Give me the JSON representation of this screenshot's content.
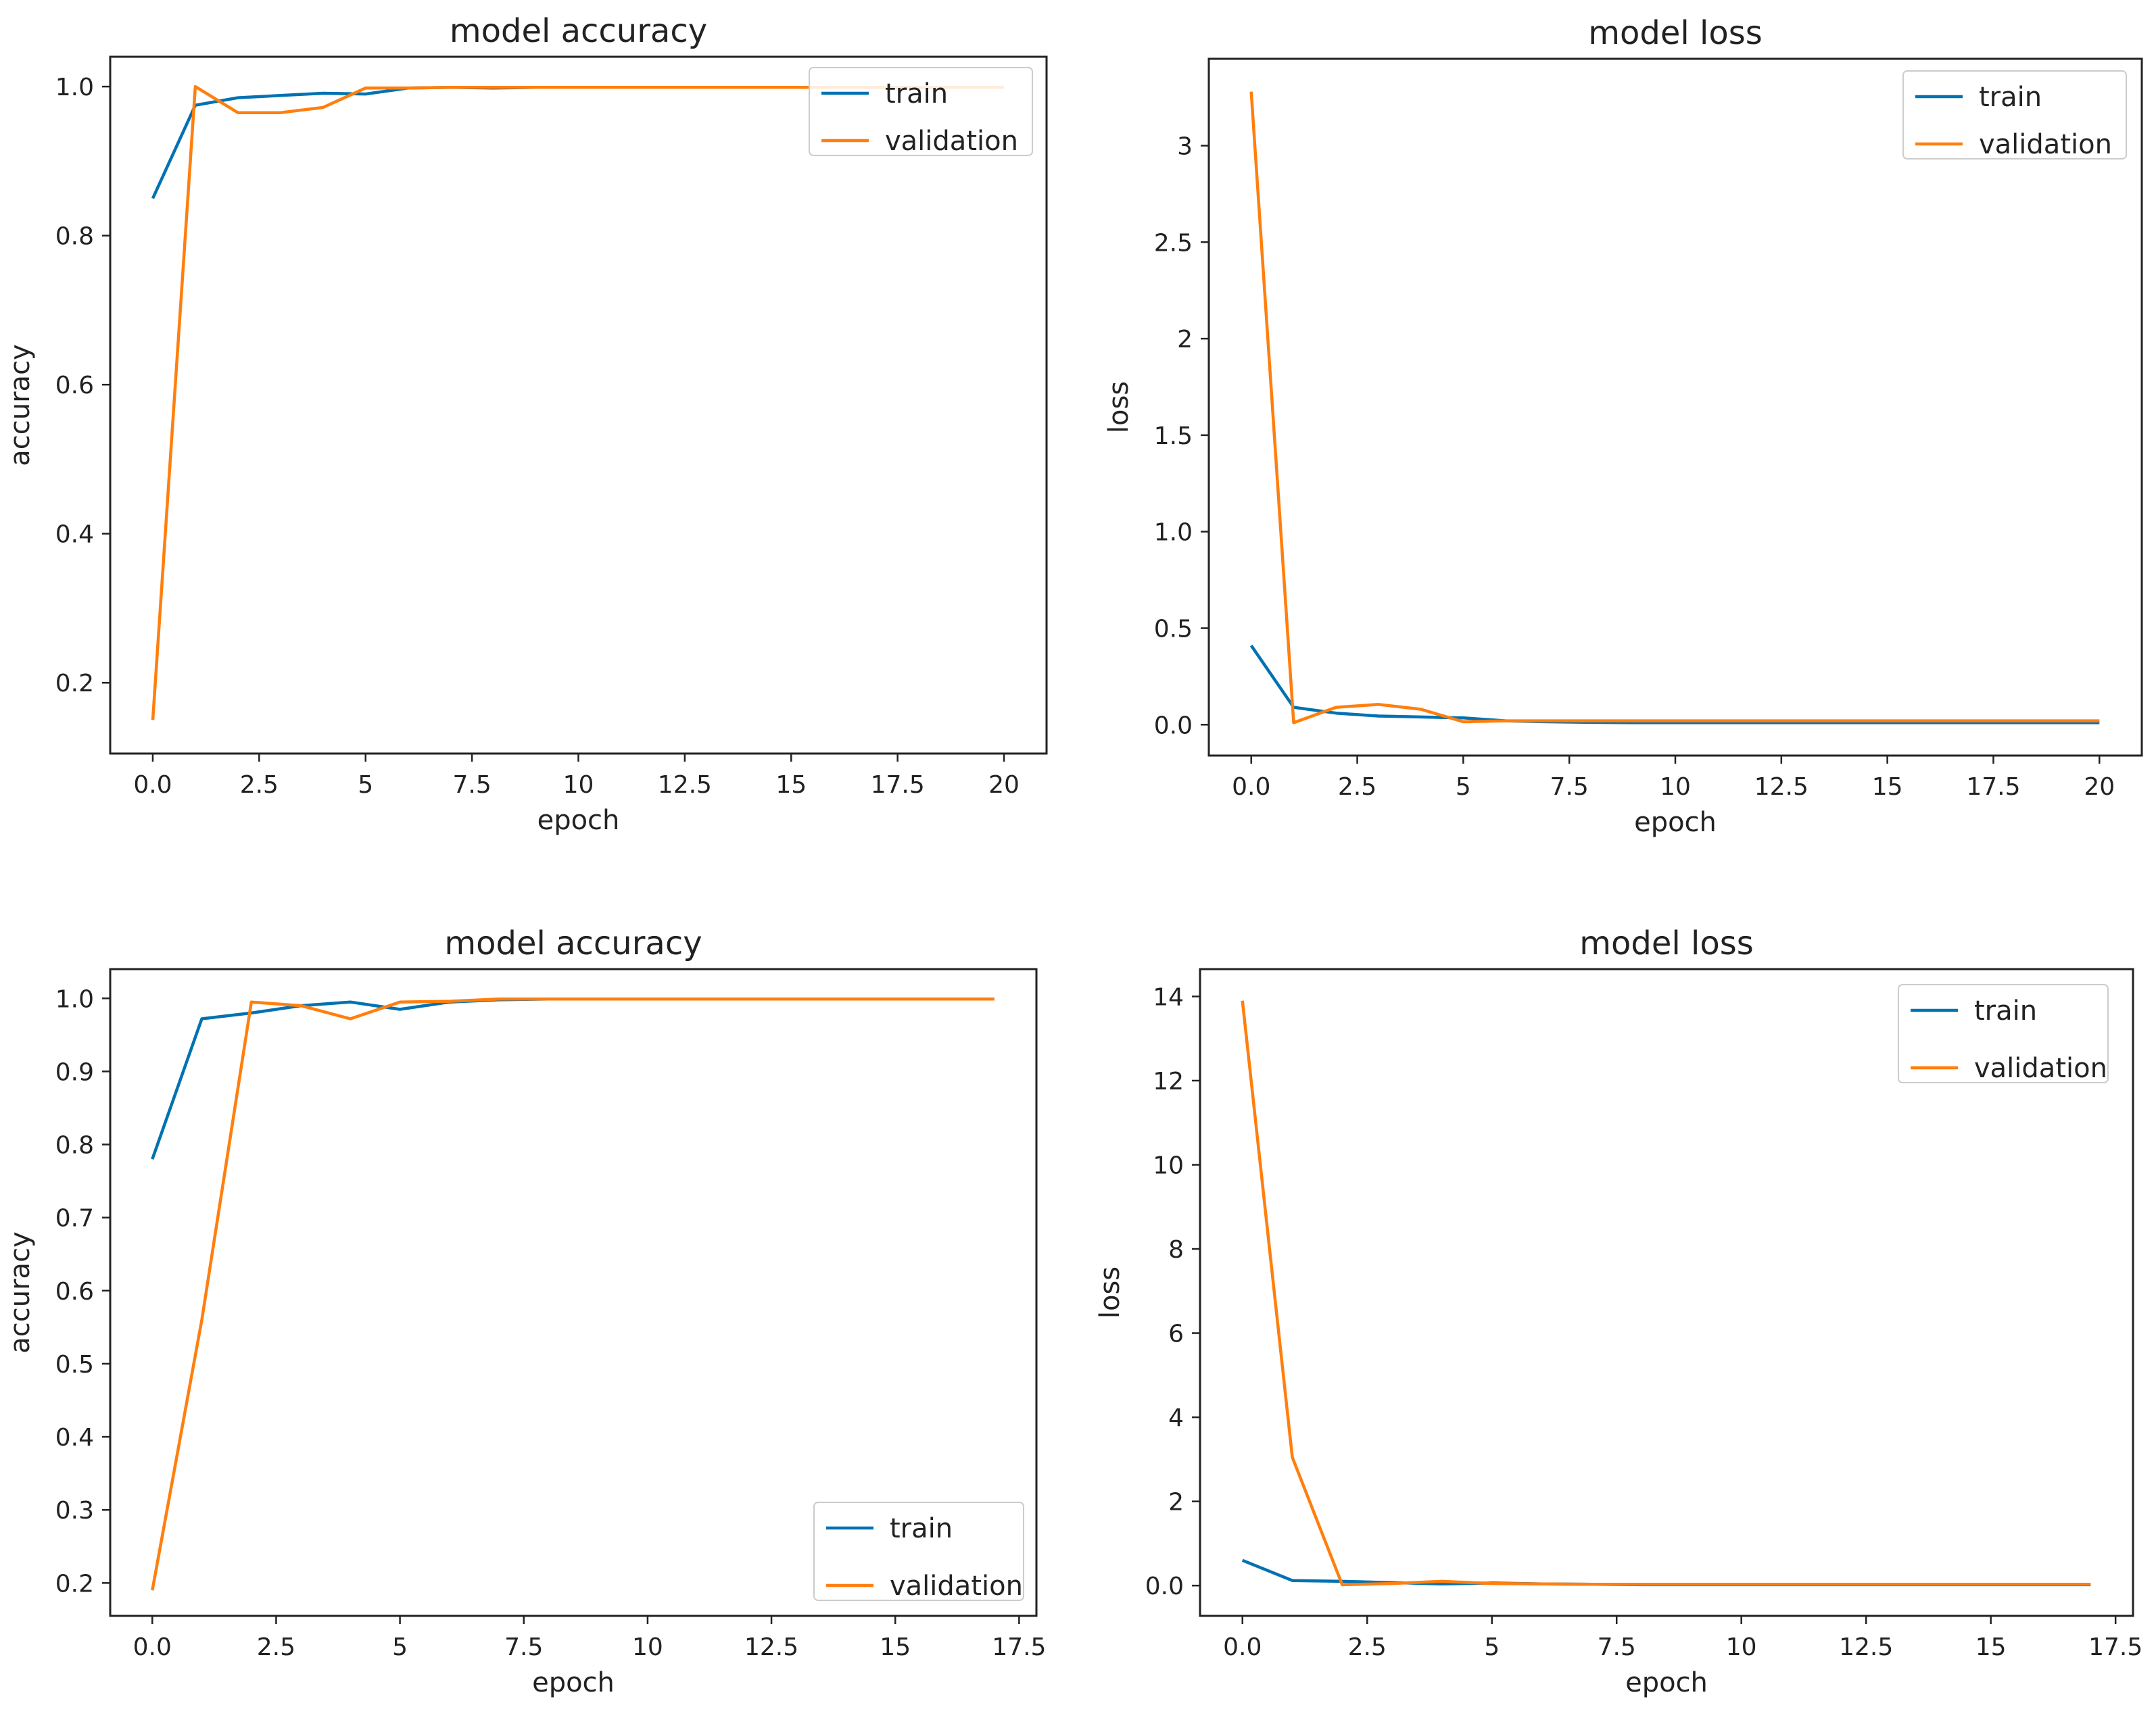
{
  "colors": {
    "train": "#0072B2",
    "validation": "#FF7F0E",
    "axes": "#222222"
  },
  "chart_data": [
    {
      "type": "line",
      "title": "model accuracy",
      "xlabel": "epoch",
      "ylabel": "accuracy",
      "xlim": [
        -1.0,
        21.0
      ],
      "ylim": [
        0.105,
        1.04
      ],
      "xticks": [
        0.0,
        2.5,
        5.0,
        7.5,
        10.0,
        12.5,
        15.0,
        17.5,
        20.0
      ],
      "yticks": [
        0.2,
        0.4,
        0.6,
        0.8,
        1.0
      ],
      "legend_position": "top-right",
      "series": [
        {
          "name": "train",
          "x": [
            0,
            1,
            2,
            3,
            4,
            5,
            6,
            7,
            8,
            9,
            10,
            11,
            12,
            13,
            14,
            15,
            16,
            17,
            18,
            19,
            20
          ],
          "values": [
            0.85,
            0.975,
            0.985,
            0.988,
            0.991,
            0.99,
            0.998,
            0.999,
            0.998,
            0.999,
            0.999,
            0.999,
            0.999,
            0.999,
            0.999,
            0.999,
            0.999,
            0.999,
            0.999,
            0.999,
            0.999
          ]
        },
        {
          "name": "validation",
          "x": [
            0,
            1,
            2,
            3,
            4,
            5,
            6,
            7,
            8,
            9,
            10,
            11,
            12,
            13,
            14,
            15,
            16,
            17,
            18,
            19,
            20
          ],
          "values": [
            0.15,
            1.0,
            0.965,
            0.965,
            0.972,
            0.998,
            0.998,
            0.999,
            0.999,
            0.999,
            0.999,
            0.999,
            0.999,
            0.999,
            0.999,
            0.999,
            0.999,
            0.999,
            0.999,
            0.999,
            0.999
          ]
        }
      ]
    },
    {
      "type": "line",
      "title": "model loss",
      "xlabel": "epoch",
      "ylabel": "loss",
      "xlim": [
        -1.0,
        21.0
      ],
      "ylim": [
        -0.16,
        3.45
      ],
      "xticks": [
        0.0,
        2.5,
        5.0,
        7.5,
        10.0,
        12.5,
        15.0,
        17.5,
        20.0
      ],
      "yticks": [
        0.0,
        0.5,
        1.0,
        1.5,
        2.0,
        2.5,
        3.0
      ],
      "legend_position": "top-right",
      "series": [
        {
          "name": "train",
          "x": [
            0,
            1,
            2,
            3,
            4,
            5,
            6,
            7,
            8,
            9,
            10,
            11,
            12,
            13,
            14,
            15,
            16,
            17,
            18,
            19,
            20
          ],
          "values": [
            0.41,
            0.09,
            0.06,
            0.045,
            0.04,
            0.035,
            0.02,
            0.015,
            0.012,
            0.01,
            0.01,
            0.01,
            0.01,
            0.01,
            0.01,
            0.01,
            0.01,
            0.01,
            0.01,
            0.01,
            0.01
          ]
        },
        {
          "name": "validation",
          "x": [
            0,
            1,
            2,
            3,
            4,
            5,
            6,
            7,
            8,
            9,
            10,
            11,
            12,
            13,
            14,
            15,
            16,
            17,
            18,
            19,
            20
          ],
          "values": [
            3.28,
            0.01,
            0.09,
            0.105,
            0.08,
            0.015,
            0.02,
            0.02,
            0.02,
            0.02,
            0.02,
            0.02,
            0.02,
            0.02,
            0.02,
            0.02,
            0.02,
            0.02,
            0.02,
            0.02,
            0.02
          ]
        }
      ]
    },
    {
      "type": "line",
      "title": "model accuracy",
      "xlabel": "epoch",
      "ylabel": "accuracy",
      "xlim": [
        -0.85,
        17.85
      ],
      "ylim": [
        0.155,
        1.04
      ],
      "xticks": [
        0.0,
        2.5,
        5.0,
        7.5,
        10.0,
        12.5,
        15.0,
        17.5
      ],
      "yticks": [
        0.2,
        0.3,
        0.4,
        0.5,
        0.6,
        0.7,
        0.8,
        0.9,
        1.0
      ],
      "legend_position": "bottom-right",
      "series": [
        {
          "name": "train",
          "x": [
            0,
            1,
            2,
            3,
            4,
            5,
            6,
            7,
            8,
            9,
            10,
            11,
            12,
            13,
            14,
            15,
            16,
            17
          ],
          "values": [
            0.78,
            0.972,
            0.98,
            0.99,
            0.995,
            0.985,
            0.995,
            0.998,
            0.999,
            0.999,
            0.999,
            0.999,
            0.999,
            0.999,
            0.999,
            0.999,
            0.999,
            0.999
          ]
        },
        {
          "name": "validation",
          "x": [
            0,
            1,
            2,
            3,
            4,
            5,
            6,
            7,
            8,
            9,
            10,
            11,
            12,
            13,
            14,
            15,
            16,
            17
          ],
          "values": [
            0.19,
            0.56,
            0.995,
            0.99,
            0.972,
            0.995,
            0.996,
            0.999,
            0.999,
            0.999,
            0.999,
            0.999,
            0.999,
            0.999,
            0.999,
            0.999,
            0.999,
            0.999
          ]
        }
      ]
    },
    {
      "type": "line",
      "title": "model loss",
      "xlabel": "epoch",
      "ylabel": "loss",
      "xlim": [
        -0.85,
        17.85
      ],
      "ylim": [
        -0.72,
        14.65
      ],
      "xticks": [
        0.0,
        2.5,
        5.0,
        7.5,
        10.0,
        12.5,
        15.0,
        17.5
      ],
      "yticks": [
        0,
        2,
        4,
        6,
        8,
        10,
        12,
        14
      ],
      "legend_position": "top-right",
      "series": [
        {
          "name": "train",
          "x": [
            0,
            1,
            2,
            3,
            4,
            5,
            6,
            7,
            8,
            9,
            10,
            11,
            12,
            13,
            14,
            15,
            16,
            17
          ],
          "values": [
            0.6,
            0.12,
            0.1,
            0.07,
            0.04,
            0.06,
            0.04,
            0.03,
            0.02,
            0.02,
            0.02,
            0.02,
            0.02,
            0.02,
            0.02,
            0.02,
            0.02,
            0.02
          ]
        },
        {
          "name": "validation",
          "x": [
            0,
            1,
            2,
            3,
            4,
            5,
            6,
            7,
            8,
            9,
            10,
            11,
            12,
            13,
            14,
            15,
            16,
            17
          ],
          "values": [
            13.9,
            3.05,
            0.02,
            0.05,
            0.1,
            0.05,
            0.04,
            0.03,
            0.03,
            0.03,
            0.03,
            0.03,
            0.03,
            0.03,
            0.03,
            0.03,
            0.03,
            0.03
          ]
        }
      ]
    }
  ]
}
